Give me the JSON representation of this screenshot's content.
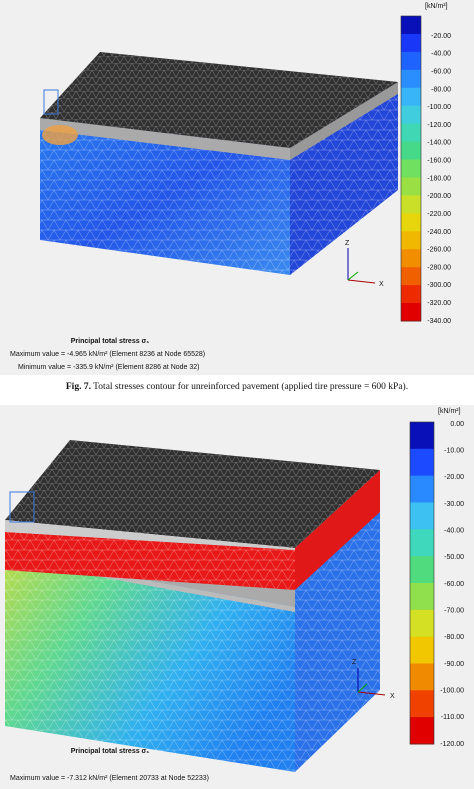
{
  "figures": [
    {
      "legend": {
        "unit": "[kN/m²]",
        "labels": [
          "-20.00",
          "-40.00",
          "-60.00",
          "-80.00",
          "-100.00",
          "-120.00",
          "-140.00",
          "-160.00",
          "-180.00",
          "-200.00",
          "-220.00",
          "-240.00",
          "-260.00",
          "-280.00",
          "-300.00",
          "-320.00",
          "-340.00"
        ]
      },
      "result": {
        "title": "Principal total stress σ₁",
        "maximum": "Maximum value = -4.965 kN/m² (Element 8236 at Node 65528)",
        "minimum": "Minimum value = -335.9 kN/m² (Element 8286 at Node 32)"
      },
      "caption": {
        "label": "Fig. 7.",
        "text": "Total stresses contour for unreinforced pavement (applied tire pressure = 600 kPa)."
      }
    },
    {
      "legend": {
        "unit": "[kN/m²]",
        "labels": [
          "0.00",
          "-10.00",
          "-20.00",
          "-30.00",
          "-40.00",
          "-50.00",
          "-60.00",
          "-70.00",
          "-80.00",
          "-90.00",
          "-100.00",
          "-110.00",
          "-120.00"
        ]
      },
      "result": {
        "title": "Principal total stress σ₁",
        "maximum": "Maximum value = -7.312 kN/m² (Element 20733 at Node 52233)"
      }
    }
  ]
}
